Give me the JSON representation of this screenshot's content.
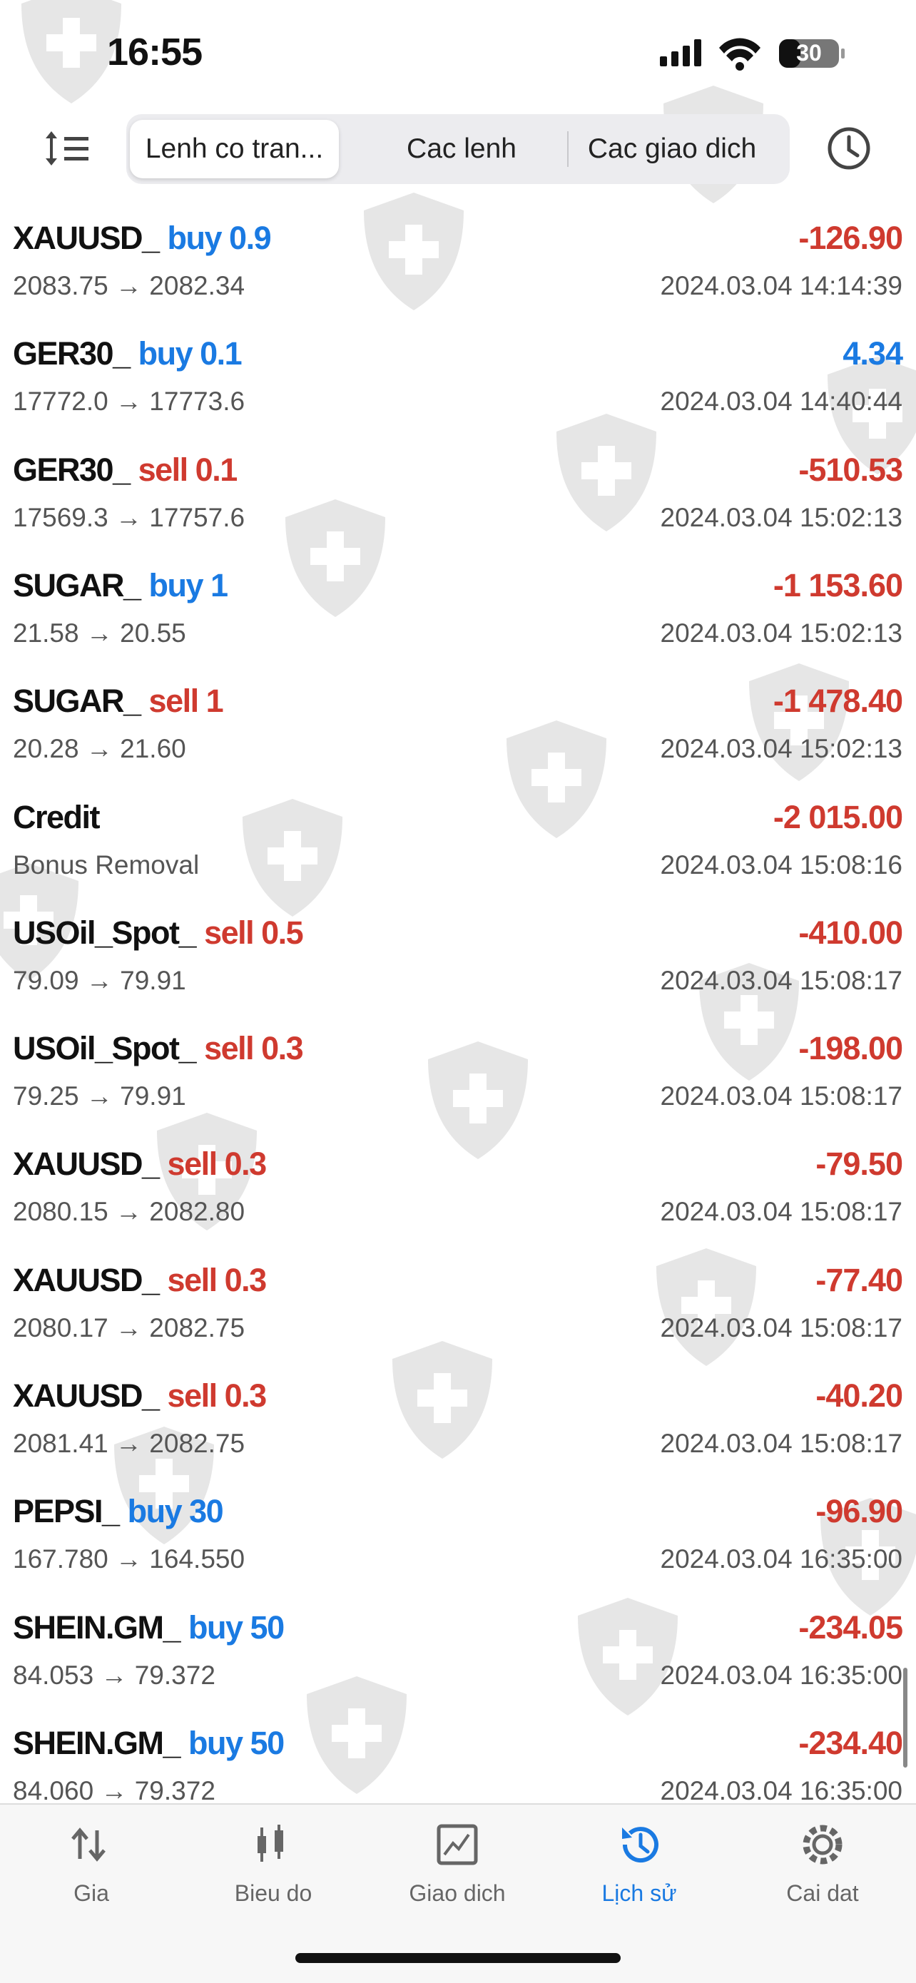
{
  "status_bar": {
    "time": "16:55",
    "battery": "30"
  },
  "tabs": [
    {
      "label": "Lenh co tran...",
      "selected": true
    },
    {
      "label": "Cac lenh",
      "selected": false
    },
    {
      "label": "Cac giao dich",
      "selected": false
    }
  ],
  "rows": [
    {
      "symbol": "XAUUSD_",
      "side": "buy 0.9",
      "side_color": "#1a7ae2",
      "detail": "2083.75 → 2082.34",
      "profit": "-126.90",
      "profit_color": "#cf3a2f",
      "time": "2024.03.04 14:14:39"
    },
    {
      "symbol": "GER30_",
      "side": "buy 0.1",
      "side_color": "#1a7ae2",
      "detail": "17772.0 → 17773.6",
      "profit": "4.34",
      "profit_color": "#1a7ae2",
      "time": "2024.03.04 14:40:44"
    },
    {
      "symbol": "GER30_",
      "side": "sell 0.1",
      "side_color": "#cf3a2f",
      "detail": "17569.3 → 17757.6",
      "profit": "-510.53",
      "profit_color": "#cf3a2f",
      "time": "2024.03.04 15:02:13"
    },
    {
      "symbol": "SUGAR_",
      "side": "buy 1",
      "side_color": "#1a7ae2",
      "detail": "21.58 → 20.55",
      "profit": "-1 153.60",
      "profit_color": "#cf3a2f",
      "time": "2024.03.04 15:02:13"
    },
    {
      "symbol": "SUGAR_",
      "side": "sell 1",
      "side_color": "#cf3a2f",
      "detail": "20.28 → 21.60",
      "profit": "-1 478.40",
      "profit_color": "#cf3a2f",
      "time": "2024.03.04 15:02:13"
    },
    {
      "symbol": "Credit",
      "detail": "Bonus Removal",
      "profit": "-2 015.00",
      "profit_color": "#cf3a2f",
      "time": "2024.03.04 15:08:16"
    },
    {
      "symbol": "USOil_Spot_",
      "side": "sell 0.5",
      "side_color": "#cf3a2f",
      "detail": "79.09 → 79.91",
      "profit": "-410.00",
      "profit_color": "#cf3a2f",
      "time": "2024.03.04 15:08:17"
    },
    {
      "symbol": "USOil_Spot_",
      "side": "sell 0.3",
      "side_color": "#cf3a2f",
      "detail": "79.25 → 79.91",
      "profit": "-198.00",
      "profit_color": "#cf3a2f",
      "time": "2024.03.04 15:08:17"
    },
    {
      "symbol": "XAUUSD_",
      "side": "sell 0.3",
      "side_color": "#cf3a2f",
      "detail": "2080.15 → 2082.80",
      "profit": "-79.50",
      "profit_color": "#cf3a2f",
      "time": "2024.03.04 15:08:17"
    },
    {
      "symbol": "XAUUSD_",
      "side": "sell 0.3",
      "side_color": "#cf3a2f",
      "detail": "2080.17 → 2082.75",
      "profit": "-77.40",
      "profit_color": "#cf3a2f",
      "time": "2024.03.04 15:08:17"
    },
    {
      "symbol": "XAUUSD_",
      "side": "sell 0.3",
      "side_color": "#cf3a2f",
      "detail": "2081.41 → 2082.75",
      "profit": "-40.20",
      "profit_color": "#cf3a2f",
      "time": "2024.03.04 15:08:17"
    },
    {
      "symbol": "PEPSI_",
      "side": "buy 30",
      "side_color": "#1a7ae2",
      "detail": "167.780 → 164.550",
      "profit": "-96.90",
      "profit_color": "#cf3a2f",
      "time": "2024.03.04 16:35:00"
    },
    {
      "symbol": "SHEIN.GM_",
      "side": "buy 50",
      "side_color": "#1a7ae2",
      "detail": "84.053 → 79.372",
      "profit": "-234.05",
      "profit_color": "#cf3a2f",
      "time": "2024.03.04 16:35:00"
    },
    {
      "symbol": "SHEIN.GM_",
      "side": "buy 50",
      "side_color": "#1a7ae2",
      "detail": "84.060 → 79.372",
      "profit": "-234.40",
      "profit_color": "#cf3a2f",
      "time": "2024.03.04 16:35:00"
    }
  ],
  "nav": [
    {
      "label": "Gia",
      "active": false
    },
    {
      "label": "Bieu do",
      "active": false
    },
    {
      "label": "Giao dich",
      "active": false
    },
    {
      "label": "Lịch sử",
      "active": true
    },
    {
      "label": "Cai dat",
      "active": false
    }
  ]
}
